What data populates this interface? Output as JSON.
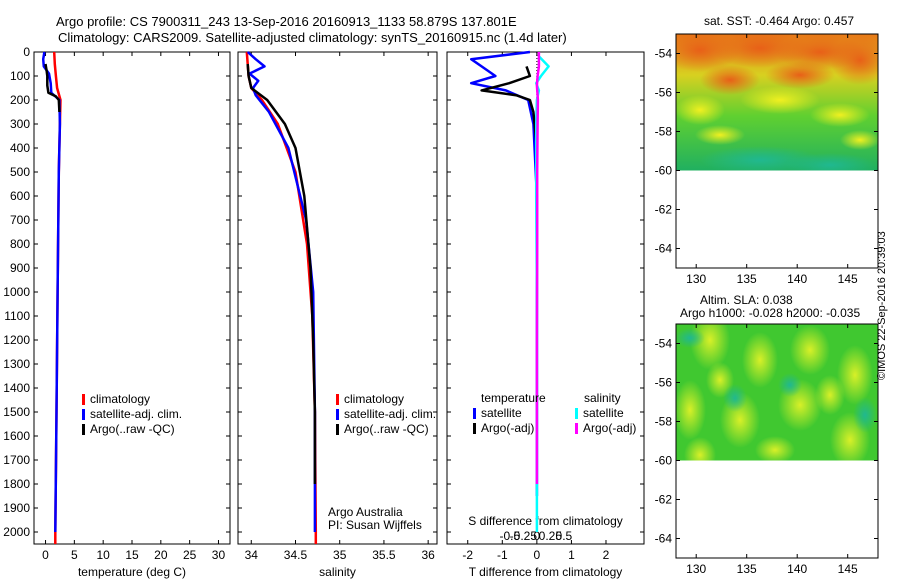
{
  "header": {
    "title_line1": "Argo profile: CS 7900311_243 13-Sep-2016 20160913_1133 58.879S 137.801E",
    "title_line2": "Climatology: CARS2009. Satellite-adjusted climatology: synTS_20160915.nc (1.4d later)"
  },
  "colors": {
    "climatology": "#ff0000",
    "satellite": "#0000ff",
    "argo": "#000000",
    "sat_salinity": "#00ffff",
    "argo_salinity": "#ff00ff"
  },
  "depth_ticks": [
    "0",
    "100",
    "200",
    "300",
    "400",
    "500",
    "600",
    "700",
    "800",
    "900",
    "1000",
    "1100",
    "1200",
    "1300",
    "1400",
    "1500",
    "1600",
    "1700",
    "1800",
    "1900",
    "2000"
  ],
  "chart_data": [
    {
      "type": "line",
      "xlabel": "temperature (deg C)",
      "xlim": [
        -2,
        32
      ],
      "ylim": [
        2050,
        0
      ],
      "x_ticks": [
        "0",
        "5",
        "10",
        "15",
        "20",
        "25",
        "30"
      ],
      "x_tick_values": [
        0,
        5,
        10,
        15,
        20,
        25,
        30
      ],
      "legend": [
        "climatology",
        "satellite-adj. clim.",
        "Argo(..raw -QC)"
      ],
      "series": [
        {
          "name": "climatology",
          "color": "#ff0000",
          "depth": [
            0,
            50,
            100,
            150,
            200,
            300,
            500,
            1000,
            1500,
            2000,
            2050
          ],
          "values": [
            1.5,
            1.6,
            1.8,
            2.0,
            2.6,
            2.5,
            2.3,
            2.1,
            1.9,
            1.7,
            1.7
          ]
        },
        {
          "name": "satellite-adj. clim.",
          "color": "#0000ff",
          "depth": [
            0,
            30,
            60,
            90,
            130,
            170,
            200,
            300,
            500,
            1000,
            1500,
            2000
          ],
          "values": [
            -0.2,
            -0.4,
            -0.3,
            0.6,
            0.9,
            1.0,
            2.4,
            2.5,
            2.3,
            2.1,
            1.9,
            1.7
          ]
        },
        {
          "name": "Argo(..raw -QC)",
          "color": "#000000",
          "depth": [
            50,
            80,
            100,
            140,
            170,
            185,
            200,
            250
          ],
          "values": [
            0.0,
            0.2,
            0.3,
            0.3,
            0.5,
            1.8,
            2.3,
            2.4
          ]
        }
      ]
    },
    {
      "type": "line",
      "xlabel": "salinity",
      "xlim": [
        33.85,
        36.1
      ],
      "ylim": [
        2050,
        0
      ],
      "x_ticks": [
        "34",
        "34.5",
        "35",
        "35.5",
        "36"
      ],
      "x_tick_values": [
        34,
        34.5,
        35,
        35.5,
        36
      ],
      "legend": [
        "climatology",
        "satellite-adj. clim.",
        "Argo(..raw -QC)"
      ],
      "annotation": [
        "Argo Australia",
        "PI: Susan Wijffels"
      ],
      "series": [
        {
          "name": "climatology",
          "color": "#ff0000",
          "depth": [
            0,
            100,
            150,
            200,
            300,
            500,
            800,
            1100,
            1500,
            2000,
            2050
          ],
          "values": [
            33.95,
            33.97,
            34.0,
            34.12,
            34.3,
            34.5,
            34.63,
            34.69,
            34.72,
            34.73,
            34.73
          ]
        },
        {
          "name": "satellite-adj. clim.",
          "color": "#0000ff",
          "depth": [
            0,
            30,
            60,
            90,
            120,
            150,
            180,
            250,
            400,
            700,
            1000,
            1500,
            2000
          ],
          "values": [
            33.96,
            34.05,
            34.15,
            33.98,
            34.08,
            34.02,
            34.05,
            34.2,
            34.42,
            34.62,
            34.7,
            34.72,
            34.72
          ]
        },
        {
          "name": "Argo(..raw -QC)",
          "color": "#000000",
          "depth": [
            50,
            100,
            150,
            200,
            300,
            400,
            600,
            900,
            1200,
            1500,
            1800
          ],
          "values": [
            33.96,
            33.97,
            34.0,
            34.18,
            34.38,
            34.5,
            34.6,
            34.67,
            34.7,
            34.72,
            34.72
          ]
        }
      ]
    },
    {
      "type": "line",
      "xlabel": "T difference from climatology",
      "xlabel2": "S difference from climatology",
      "xlim": [
        -2.6,
        3.1
      ],
      "ylim": [
        2050,
        0
      ],
      "x_ticks": [
        "-2",
        "-1",
        "0",
        "1",
        "2"
      ],
      "x_tick_values": [
        -2,
        -1,
        0,
        1,
        2
      ],
      "s_ticks": [
        "-0.5",
        "-0.25",
        "0",
        "0.25",
        "0.5"
      ],
      "s_tick_values": [
        -0.5,
        -0.25,
        0,
        0.25,
        0.5
      ],
      "legend_temperature": {
        "title": "temperature",
        "items": [
          "satellite",
          "Argo(-adj)"
        ]
      },
      "legend_salinity": {
        "title": "salinity",
        "items": [
          "satellite",
          "Argo(-adj)"
        ]
      },
      "series": [
        {
          "name": "temperature satellite",
          "color": "#0000ff",
          "depth": [
            0,
            30,
            60,
            100,
            130,
            160,
            200,
            300,
            600,
            1000,
            1500,
            1850
          ],
          "values": [
            -0.2,
            -1.9,
            -1.6,
            -1.2,
            -1.9,
            -0.9,
            -0.25,
            -0.1,
            0,
            0,
            0,
            0
          ]
        },
        {
          "name": "temperature Argo(-adj)",
          "color": "#000000",
          "depth": [
            60,
            100,
            130,
            160,
            180,
            200,
            250,
            400
          ],
          "values": [
            -0.3,
            -0.2,
            -0.8,
            -1.6,
            -0.6,
            -0.2,
            -0.1,
            0
          ]
        },
        {
          "name": "salinity satellite",
          "color": "#00ffff",
          "depth": [
            20,
            60,
            100,
            130,
            160,
            200,
            300,
            600,
            1000,
            1500,
            2000
          ],
          "values": [
            0.07,
            0.34,
            0.12,
            -0.02,
            0.06,
            0,
            -0.02,
            -0.02,
            0,
            0,
            0
          ]
        },
        {
          "name": "salinity Argo(-adj)",
          "color": "#ff00ff",
          "depth": [
            0,
            60,
            100,
            140,
            200,
            300,
            500,
            800,
            1200,
            1800
          ],
          "values": [
            0.06,
            0.06,
            0.02,
            0.0,
            0.03,
            0.02,
            0.01,
            0.01,
            0,
            0
          ]
        }
      ]
    },
    {
      "type": "heatmap",
      "title": "sat. SST: -0.464 Argo: 0.457",
      "xlim": [
        128,
        148
      ],
      "ylim": [
        -65,
        -53
      ],
      "x_ticks": [
        "130",
        "135",
        "140",
        "145"
      ],
      "x_tick_values": [
        130,
        135,
        140,
        145
      ],
      "y_ticks": [
        "-54",
        "-56",
        "-58",
        "-60",
        "-62",
        "-64"
      ],
      "y_tick_values": [
        -54,
        -56,
        -58,
        -60,
        -62,
        -64
      ],
      "data_extent_lat": [
        -60,
        -53
      ]
    },
    {
      "type": "heatmap",
      "title": "Altim. SLA: 0.038",
      "subtitle": "Argo h1000: -0.028 h2000: -0.035",
      "xlim": [
        128,
        148
      ],
      "ylim": [
        -65,
        -53
      ],
      "x_ticks": [
        "130",
        "135",
        "140",
        "145"
      ],
      "x_tick_values": [
        130,
        135,
        140,
        145
      ],
      "y_ticks": [
        "-54",
        "-56",
        "-58",
        "-60",
        "-62",
        "-64"
      ],
      "y_tick_values": [
        -54,
        -56,
        -58,
        -60,
        -62,
        -64
      ],
      "data_extent_lat": [
        -60,
        -53
      ]
    }
  ],
  "credit": "©IMOS 22-Sep-2016 20:39:03"
}
